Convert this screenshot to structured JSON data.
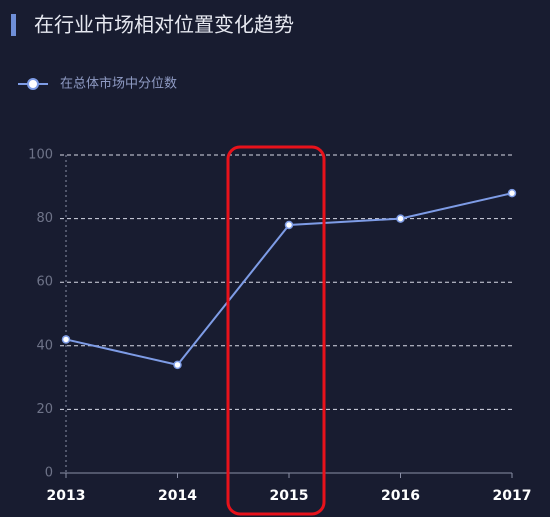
{
  "chart_data": {
    "type": "line",
    "title": "在行业市场相对位置变化趋势",
    "categories": [
      "2013",
      "2014",
      "2015",
      "2016",
      "2017"
    ],
    "series": [
      {
        "name": "在总体市场中分位数",
        "color": "#7e9ce6",
        "values": [
          42,
          34,
          78,
          80,
          88
        ]
      }
    ],
    "ylim": [
      0,
      100
    ],
    "yticks": [
      0,
      20,
      40,
      60,
      80,
      100
    ],
    "grid": true
  }
}
